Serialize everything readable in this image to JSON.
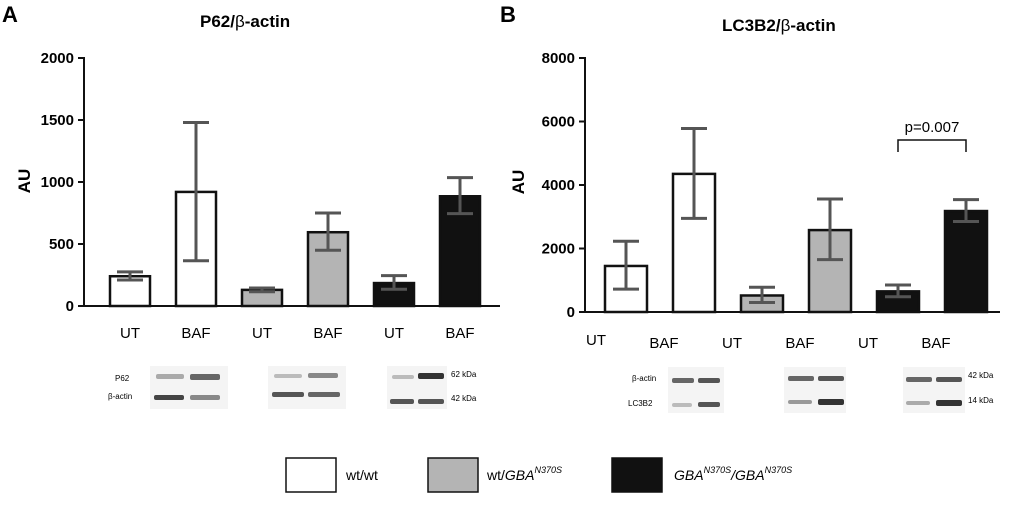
{
  "panel_a": {
    "letter": "A",
    "title_prefix": "P62/",
    "title_beta": "β",
    "title_suffix": "-actin"
  },
  "panel_b": {
    "letter": "B",
    "title_prefix": "LC3B2/",
    "title_beta": "β",
    "title_suffix": "-actin"
  },
  "colors": {
    "wt_wt": "#ffffff",
    "wt_gba": "#b4b4b4",
    "gba_gba": "#111111",
    "error_bar": "#555555",
    "axis": "#111111"
  },
  "chart_data": [
    {
      "type": "bar",
      "panel": "A",
      "title": "P62/β-actin",
      "ylabel": "AU",
      "ylim": [
        0,
        2000
      ],
      "yticks": [
        0,
        500,
        1000,
        1500,
        2000
      ],
      "categories": [
        "UT",
        "BAF",
        "UT",
        "BAF",
        "UT",
        "BAF"
      ],
      "groups": [
        "wt/wt",
        "wt/wt",
        "wt/GBA N370S",
        "wt/GBA N370S",
        "GBA N370S/GBA N370S",
        "GBA N370S/GBA N370S"
      ],
      "values": [
        240,
        920,
        130,
        595,
        185,
        885
      ],
      "error_low": [
        210,
        365,
        115,
        450,
        135,
        745
      ],
      "error_high": [
        275,
        1480,
        145,
        750,
        245,
        1035
      ]
    },
    {
      "type": "bar",
      "panel": "B",
      "title": "LC3B2/β-actin",
      "ylabel": "AU",
      "ylim": [
        0,
        8000
      ],
      "yticks": [
        0,
        2000,
        4000,
        6000,
        8000
      ],
      "categories": [
        "UT",
        "BAF",
        "UT",
        "BAF",
        "UT",
        "BAF"
      ],
      "groups": [
        "wt/wt",
        "wt/wt",
        "wt/GBA N370S",
        "wt/GBA N370S",
        "GBA N370S/GBA N370S",
        "GBA N370S/GBA N370S"
      ],
      "values": [
        1450,
        4350,
        520,
        2580,
        650,
        3180
      ],
      "error_low": [
        720,
        2950,
        300,
        1650,
        480,
        2850
      ],
      "error_high": [
        2230,
        5780,
        780,
        3560,
        850,
        3540
      ],
      "annotations": [
        {
          "text": "p=0.007",
          "between": [
            4,
            5
          ]
        }
      ]
    }
  ],
  "blots": {
    "a_labels": [
      "P62",
      "β-actin"
    ],
    "a_kda": [
      "62 kDa",
      "42 kDa"
    ],
    "b_labels": [
      "β-actin",
      "LC3B2"
    ],
    "b_kda": [
      "42 kDa",
      "14 kDa"
    ]
  },
  "legend": {
    "wt_wt": "wt/wt",
    "wt_gba_prefix": "wt/",
    "gba": "GBA",
    "n370s": "N370S",
    "slash": "/"
  }
}
